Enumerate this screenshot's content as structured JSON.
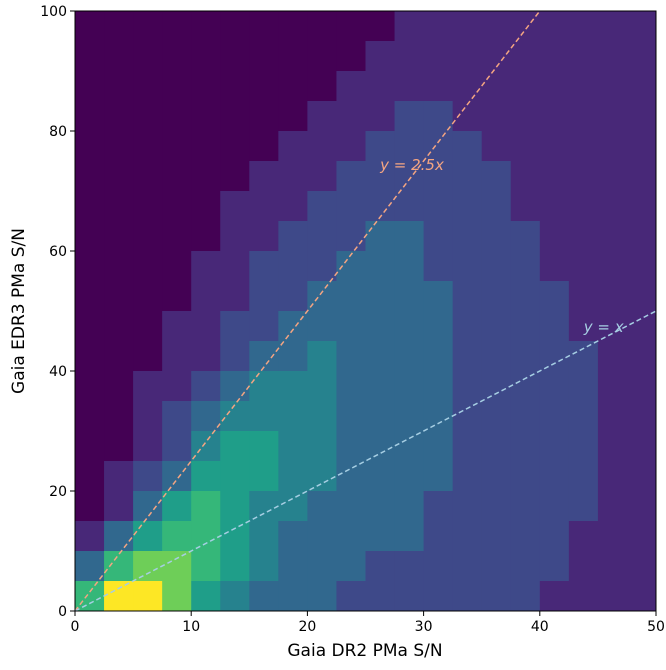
{
  "chart_data": {
    "type": "hexbin",
    "xlabel": "Gaia DR2 PMa S/N",
    "ylabel": "Gaia EDR3 PMa S/N",
    "xlim": [
      0,
      50
    ],
    "ylim": [
      0,
      100
    ],
    "xticks": [
      0,
      10,
      20,
      30,
      40,
      50
    ],
    "yticks": [
      0,
      20,
      40,
      60,
      80,
      100
    ],
    "x": [
      1.25,
      3.75,
      6.25,
      8.75,
      11.25,
      13.75,
      16.25,
      18.75,
      21.25,
      23.75,
      26.25,
      28.75,
      31.25,
      33.75,
      36.25,
      38.75,
      41.25,
      43.75,
      46.25,
      48.75
    ],
    "y": [
      97.5,
      92.5,
      87.5,
      82.5,
      77.5,
      72.5,
      67.5,
      62.5,
      57.5,
      52.5,
      47.5,
      42.5,
      37.5,
      32.5,
      27.5,
      22.5,
      17.5,
      12.5,
      7.5,
      2.5
    ],
    "z": [
      [
        0,
        0,
        0,
        0,
        0,
        0,
        0,
        0,
        0,
        0,
        0,
        1,
        1,
        1,
        1,
        1,
        1,
        1,
        1,
        1
      ],
      [
        0,
        0,
        0,
        0,
        0,
        0,
        0,
        0,
        0,
        0,
        1,
        1,
        1,
        1,
        1,
        1,
        1,
        1,
        1,
        1
      ],
      [
        0,
        0,
        0,
        0,
        0,
        0,
        0,
        0,
        0,
        1,
        1,
        1,
        1,
        1,
        1,
        1,
        1,
        1,
        1,
        1
      ],
      [
        0,
        0,
        0,
        0,
        0,
        0,
        0,
        0,
        1,
        1,
        1,
        2,
        2,
        1,
        1,
        1,
        1,
        1,
        1,
        1
      ],
      [
        0,
        0,
        0,
        0,
        0,
        0,
        0,
        1,
        1,
        1,
        2,
        2,
        2,
        2,
        1,
        1,
        1,
        1,
        1,
        1
      ],
      [
        0,
        0,
        0,
        0,
        0,
        0,
        1,
        1,
        1,
        2,
        2,
        2,
        2,
        2,
        2,
        1,
        1,
        1,
        1,
        1
      ],
      [
        0,
        0,
        0,
        0,
        0,
        1,
        1,
        1,
        2,
        2,
        2,
        2,
        2,
        2,
        2,
        1,
        1,
        1,
        1,
        1
      ],
      [
        0,
        0,
        0,
        0,
        0,
        1,
        1,
        2,
        2,
        2,
        3,
        3,
        2,
        2,
        2,
        2,
        1,
        1,
        1,
        1
      ],
      [
        0,
        0,
        0,
        0,
        1,
        1,
        2,
        2,
        2,
        3,
        3,
        3,
        2,
        2,
        2,
        2,
        1,
        1,
        1,
        1
      ],
      [
        0,
        0,
        0,
        0,
        1,
        1,
        2,
        2,
        3,
        3,
        3,
        3,
        3,
        2,
        2,
        2,
        2,
        1,
        1,
        1
      ],
      [
        0,
        0,
        0,
        1,
        1,
        2,
        2,
        3,
        3,
        3,
        3,
        3,
        3,
        2,
        2,
        2,
        2,
        1,
        1,
        1
      ],
      [
        0,
        0,
        0,
        1,
        1,
        2,
        3,
        3,
        4,
        3,
        3,
        3,
        3,
        2,
        2,
        2,
        2,
        2,
        1,
        1
      ],
      [
        0,
        0,
        1,
        1,
        2,
        3,
        4,
        4,
        4,
        3,
        3,
        3,
        3,
        2,
        2,
        2,
        2,
        2,
        1,
        1
      ],
      [
        0,
        0,
        1,
        2,
        3,
        4,
        4,
        4,
        4,
        3,
        3,
        3,
        3,
        2,
        2,
        2,
        2,
        2,
        1,
        1
      ],
      [
        0,
        0,
        1,
        2,
        4,
        5,
        5,
        4,
        4,
        3,
        3,
        3,
        3,
        2,
        2,
        2,
        2,
        2,
        1,
        1
      ],
      [
        0,
        1,
        2,
        3,
        5,
        5,
        5,
        4,
        4,
        3,
        3,
        3,
        3,
        2,
        2,
        2,
        2,
        2,
        1,
        1
      ],
      [
        0,
        1,
        3,
        5,
        6,
        5,
        4,
        4,
        3,
        3,
        3,
        3,
        2,
        2,
        2,
        2,
        2,
        2,
        1,
        1
      ],
      [
        1,
        3,
        5,
        6,
        6,
        5,
        4,
        3,
        3,
        3,
        3,
        3,
        2,
        2,
        2,
        2,
        2,
        1,
        1,
        1
      ],
      [
        3,
        6,
        7,
        7,
        6,
        5,
        4,
        3,
        3,
        3,
        2,
        2,
        2,
        2,
        2,
        2,
        2,
        1,
        1,
        1
      ],
      [
        6,
        9,
        9,
        7,
        5,
        4,
        3,
        3,
        3,
        2,
        2,
        2,
        2,
        2,
        2,
        2,
        1,
        1,
        1,
        1
      ]
    ],
    "colormap": [
      "#440154",
      "#482878",
      "#3e4989",
      "#31688e",
      "#26828e",
      "#1f9e89",
      "#35b779",
      "#6ece58",
      "#b5de2b",
      "#fde725"
    ],
    "lines": [
      {
        "label": "y = 2.5x",
        "slope": 2.5,
        "color": "#f4a582"
      },
      {
        "label": "y = x",
        "slope": 1,
        "color": "#a6cee3"
      }
    ]
  }
}
